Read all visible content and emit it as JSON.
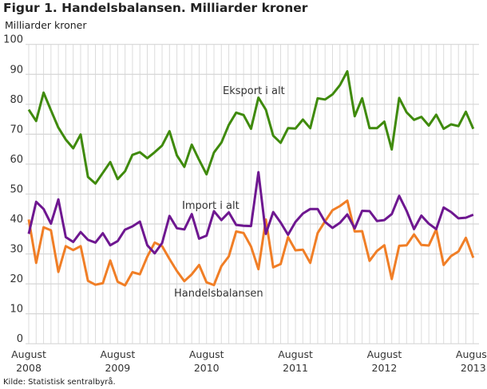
{
  "chart_data": {
    "type": "line",
    "title": "Figur 1. Handelsbalansen. Milliarder kroner",
    "ylabel": "Milliarder kroner",
    "xlabel": "",
    "source": "Kilde: Statistisk sentralbyrå.",
    "ylim": [
      0,
      100
    ],
    "yticks": [
      "0",
      "10",
      "20",
      "30",
      "40",
      "50",
      "60",
      "70",
      "80",
      "90",
      "100"
    ],
    "x_start": "August 2008",
    "x_end": "August 2013",
    "x_frequency": "monthly",
    "xticks": [
      {
        "month": "August",
        "year": "2008"
      },
      {
        "month": "August",
        "year": "2009"
      },
      {
        "month": "August",
        "year": "2010"
      },
      {
        "month": "August",
        "year": "2011"
      },
      {
        "month": "August",
        "year": "2012"
      },
      {
        "month": "August",
        "year": "2013"
      }
    ],
    "grid": true,
    "legend": "inline labels",
    "series": [
      {
        "name": "Eksport i alt",
        "color": "#3f8a0c",
        "values": [
          78.2,
          74.4,
          83.9,
          78,
          72.2,
          68.2,
          65.3,
          69.9,
          55.7,
          53.5,
          57.1,
          60.7,
          55,
          57.6,
          63.1,
          64,
          62,
          64,
          66.2,
          71,
          62.9,
          59.1,
          66.5,
          61.4,
          56.6,
          63.9,
          67.2,
          73.1,
          77.2,
          76.4,
          71.8,
          82.2,
          78.2,
          69.5,
          67.1,
          72,
          71.9,
          74.9,
          72,
          82,
          81.6,
          83.3,
          86.4,
          91,
          76,
          82,
          72,
          72,
          74.2,
          64.9,
          82.1,
          77.3,
          74.8,
          75.8,
          72.9,
          76.5,
          71.8,
          73.3,
          72.7,
          77.5,
          71.8
        ]
      },
      {
        "name": "Import i alt",
        "color": "#6e1790",
        "values": [
          36.7,
          47.4,
          45,
          40.1,
          48.2,
          35.6,
          34,
          37.3,
          34.7,
          33.8,
          36.9,
          32.9,
          34.3,
          38.1,
          39.2,
          40.8,
          32.9,
          30.2,
          33.6,
          42.7,
          38.6,
          38.2,
          43.3,
          35.1,
          36.1,
          44.3,
          41.3,
          43.9,
          39.7,
          39.4,
          39.3,
          57.3,
          36.7,
          44,
          40.5,
          36.4,
          40.7,
          43.5,
          45,
          45,
          40.7,
          38.7,
          40.4,
          43.2,
          38.5,
          44.4,
          44.3,
          41,
          41.3,
          43.3,
          49.4,
          44.4,
          38.3,
          42.8,
          40.1,
          38.3,
          45.5,
          44,
          41.9,
          42.1,
          43.1
        ]
      },
      {
        "name": "Handelsbalansen",
        "color": "#f07e26",
        "values": [
          41.5,
          27,
          38.9,
          37.9,
          24,
          32.6,
          31.3,
          32.6,
          21,
          19.7,
          20.2,
          27.8,
          20.7,
          19.5,
          23.9,
          23.2,
          29.1,
          33.8,
          32.6,
          28.3,
          24.3,
          20.9,
          23.2,
          26.3,
          20.5,
          19.6,
          25.9,
          29.2,
          37.5,
          37,
          32.5,
          24.9,
          41.5,
          25.5,
          26.6,
          35.6,
          31.2,
          31.4,
          27,
          37,
          40.9,
          44.6,
          46,
          47.8,
          37.5,
          37.6,
          27.7,
          31,
          32.9,
          21.6,
          32.7,
          32.9,
          36.5,
          33,
          32.8,
          38.2,
          26.3,
          29.3,
          30.8,
          35.4,
          28.7
        ]
      }
    ]
  }
}
